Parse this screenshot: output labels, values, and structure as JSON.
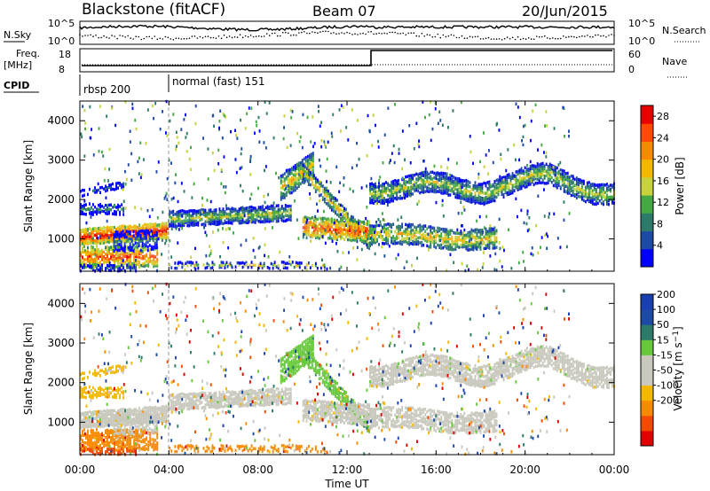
{
  "header": {
    "station": "Blackstone (fitACF)",
    "beam": "Beam 07",
    "date": "20/Jun/2015"
  },
  "noise_panel": {
    "left_label": "N.Sky",
    "right_label": "N.Search",
    "ticks": [
      "10^5",
      "10^0"
    ]
  },
  "freq_panel": {
    "left_label_1": "Freq.",
    "left_label_2": "[MHz]",
    "left_ticks": [
      "18",
      "8"
    ],
    "right_label": "Nave",
    "right_ticks": [
      "60",
      "0"
    ]
  },
  "cpid_panel": {
    "label": "CPID",
    "modes": [
      "rbsp 200",
      "normal (fast) 151"
    ]
  },
  "colors": {
    "power": [
      "#0000ff",
      "#1e4aa5",
      "#2d7a6b",
      "#43a843",
      "#c8d23c",
      "#f2b800",
      "#f78a00",
      "#ff4a00",
      "#e60000"
    ],
    "velocity": [
      "#e00000",
      "#f24a00",
      "#f78a00",
      "#f2b800",
      "#c9c8bd",
      "#c9c8bd",
      "#68c83c",
      "#2d7a6b",
      "#1e4aa5",
      "#1a3fb0"
    ]
  },
  "chart_data": [
    {
      "type": "heatmap",
      "title": "Power",
      "xlabel": "",
      "ylabel": "Slant Range [km]",
      "x_ticks": [
        "00:00",
        "04:00",
        "08:00",
        "12:00",
        "16:00",
        "20:00",
        "00:00"
      ],
      "y_ticks": [
        "1000",
        "2000",
        "3000",
        "4000"
      ],
      "ylim": [
        180,
        4500
      ],
      "xlim_hours": [
        0,
        24
      ],
      "colorbar_label": "Power [dB]",
      "colorbar_ticks": [
        "4",
        "8",
        "12",
        "16",
        "20",
        "24",
        "28"
      ],
      "colorbar_range": [
        0,
        30
      ]
    },
    {
      "type": "heatmap",
      "title": "Velocity",
      "xlabel": "Time UT",
      "ylabel": "Slant Range [km]",
      "x_ticks": [
        "00:00",
        "04:00",
        "08:00",
        "12:00",
        "16:00",
        "20:00",
        "00:00"
      ],
      "y_ticks": [
        "1000",
        "2000",
        "3000",
        "4000"
      ],
      "ylim": [
        180,
        4500
      ],
      "xlim_hours": [
        0,
        24
      ],
      "colorbar_label": "Velocity [m s^-1]",
      "colorbar_ticks": [
        "200",
        "100",
        "50",
        "15",
        "-15",
        "-50",
        "-100",
        "-200"
      ]
    }
  ]
}
